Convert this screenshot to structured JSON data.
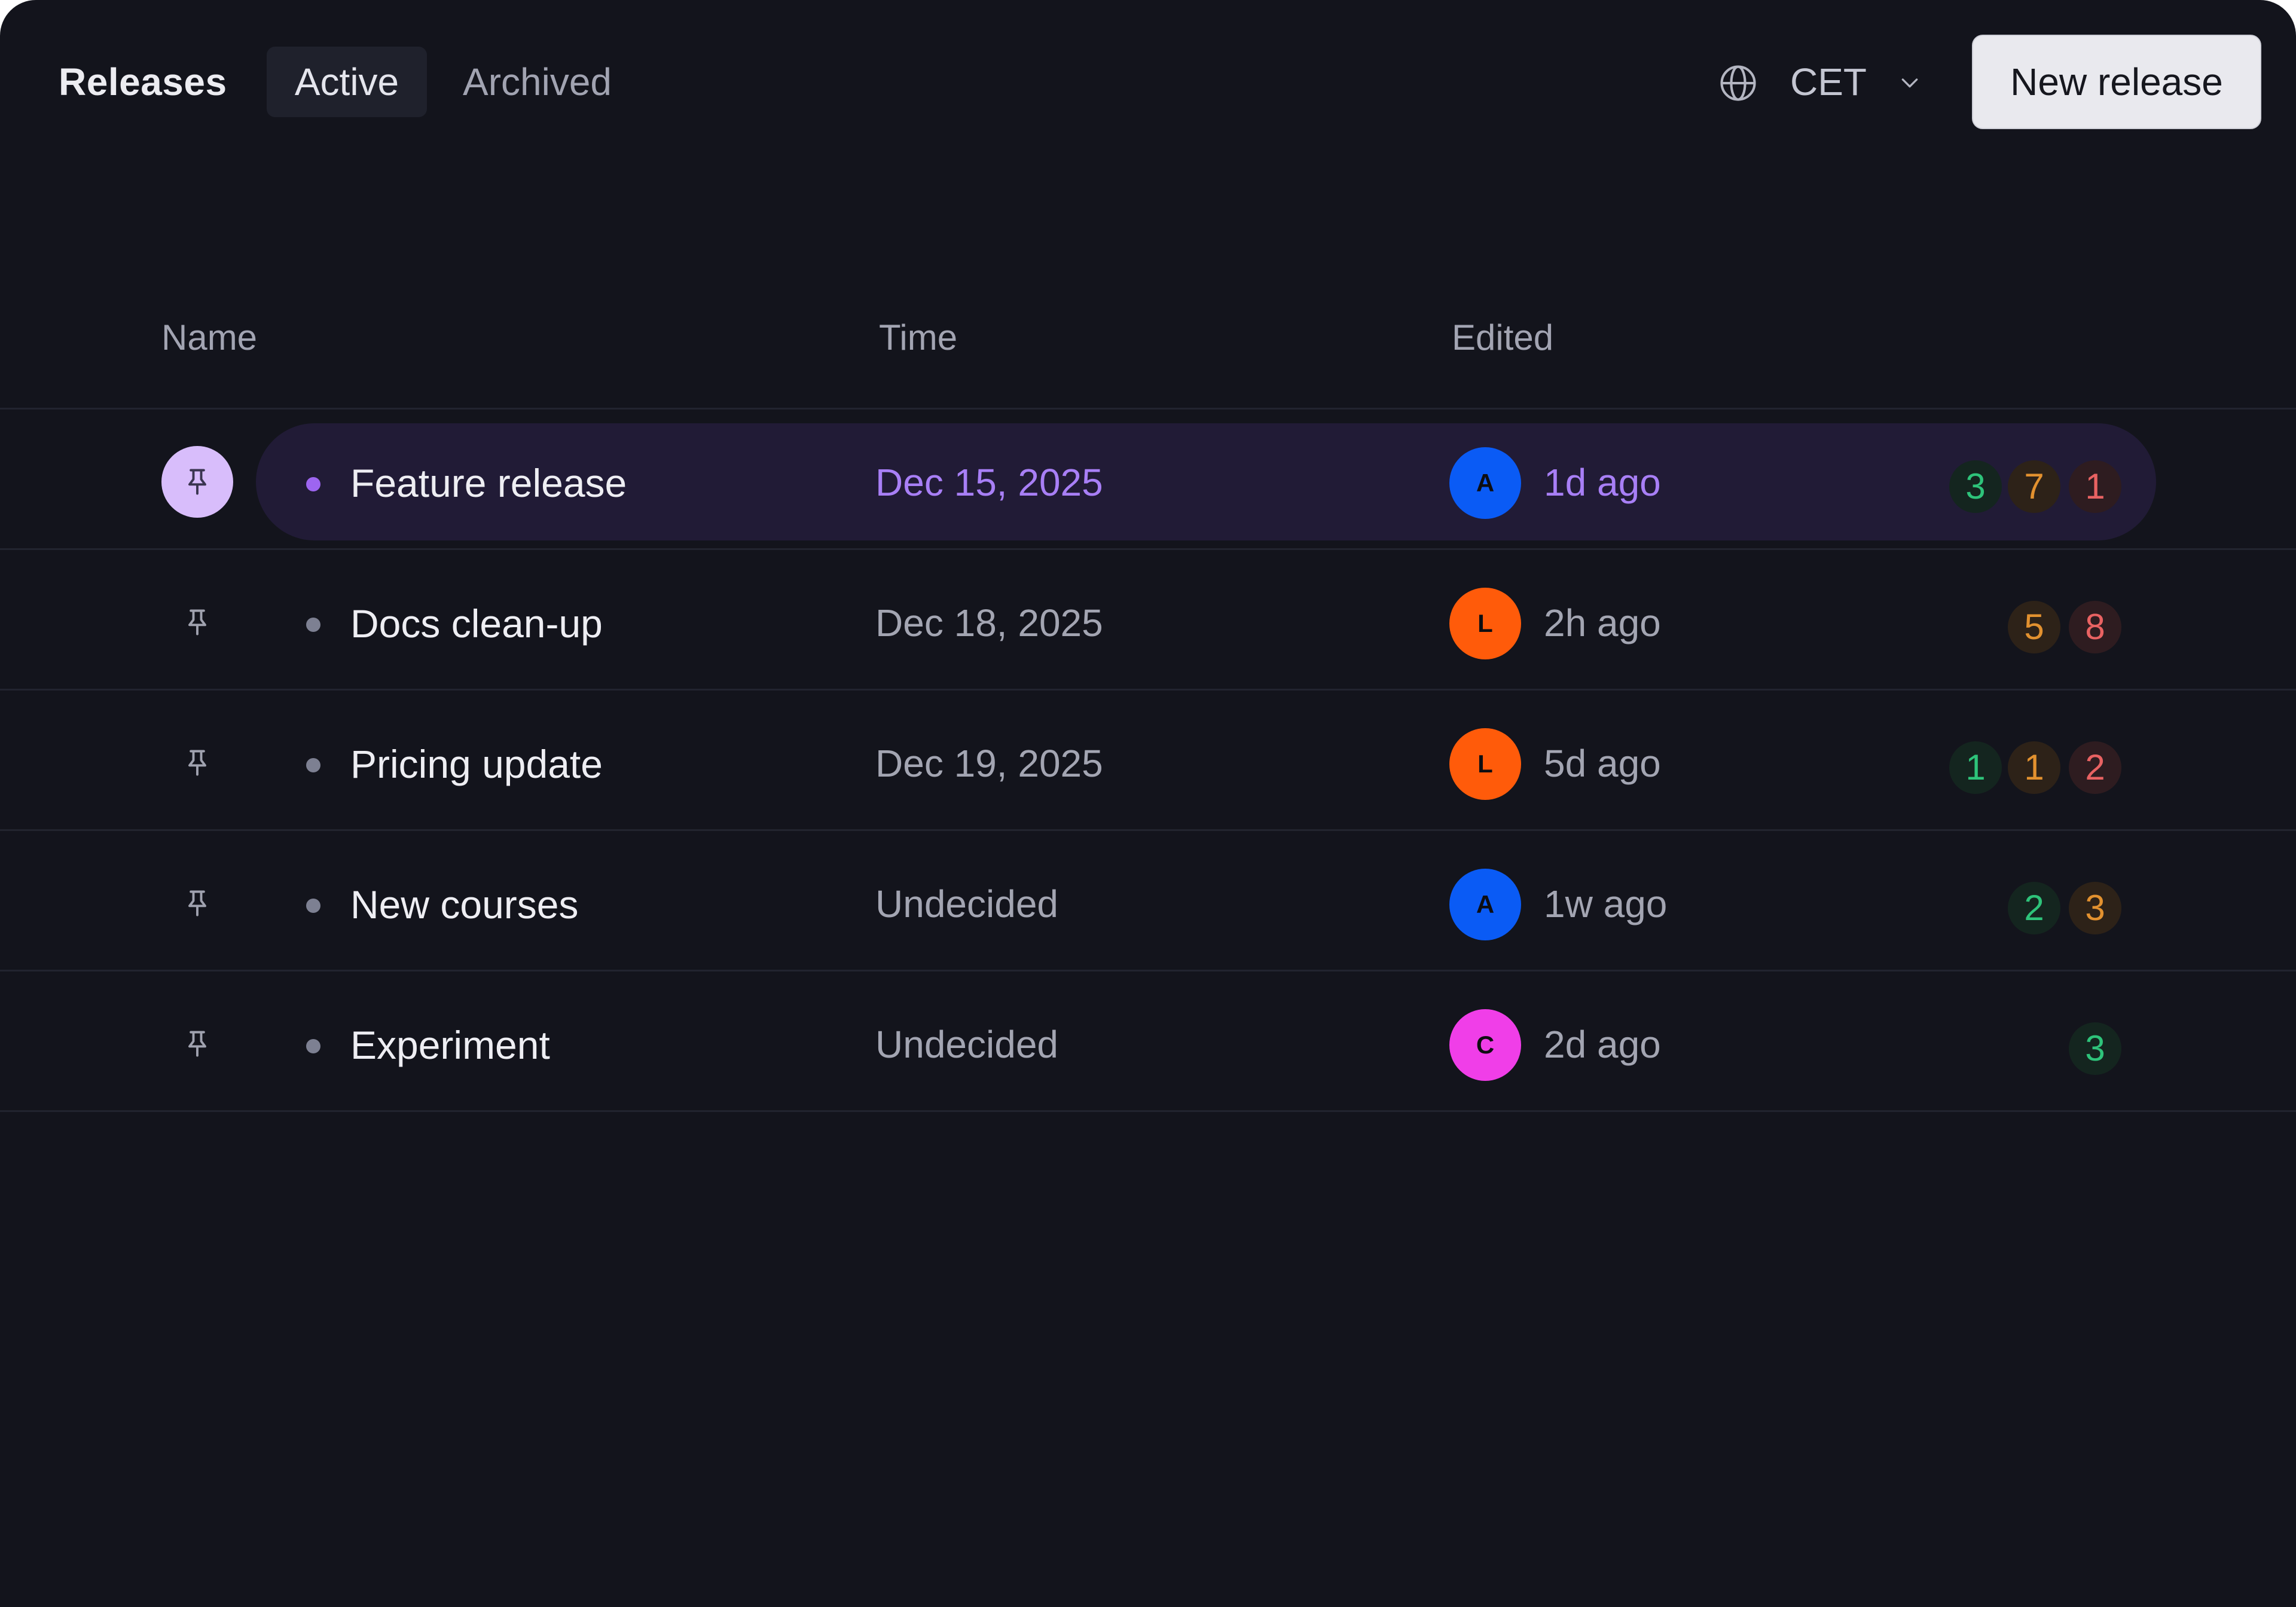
{
  "header": {
    "title": "Releases",
    "tabs": [
      {
        "label": "Active",
        "selected": true
      },
      {
        "label": "Archived",
        "selected": false
      }
    ],
    "timezone": {
      "label": "CET",
      "icon": "globe-icon"
    },
    "new_button": "New release"
  },
  "table": {
    "columns": [
      "Name",
      "Time",
      "Edited"
    ],
    "rows": [
      {
        "name": "Feature release",
        "time": "Dec 15, 2025",
        "avatar": "A",
        "avatar_color": "#0a5bf5",
        "edited": "1d ago",
        "pinned": true,
        "badges": [
          {
            "value": "3",
            "kind": "green"
          },
          {
            "value": "7",
            "kind": "orange"
          },
          {
            "value": "1",
            "kind": "red"
          }
        ]
      },
      {
        "name": "Docs clean-up",
        "time": "Dec 18, 2025",
        "avatar": "L",
        "avatar_color": "#ff5b0a",
        "edited": "2h ago",
        "pinned": false,
        "badges": [
          {
            "value": "5",
            "kind": "orange"
          },
          {
            "value": "8",
            "kind": "red"
          }
        ]
      },
      {
        "name": "Pricing update",
        "time": "Dec 19, 2025",
        "avatar": "L",
        "avatar_color": "#ff5b0a",
        "edited": "5d ago",
        "pinned": false,
        "badges": [
          {
            "value": "1",
            "kind": "green"
          },
          {
            "value": "1",
            "kind": "orange"
          },
          {
            "value": "2",
            "kind": "red"
          }
        ]
      },
      {
        "name": "New courses",
        "time": "Undecided",
        "avatar": "A",
        "avatar_color": "#0a5bf5",
        "edited": "1w ago",
        "pinned": false,
        "badges": [
          {
            "value": "2",
            "kind": "green"
          },
          {
            "value": "3",
            "kind": "orange"
          }
        ]
      },
      {
        "name": "Experiment",
        "time": "Undecided",
        "avatar": "C",
        "avatar_color": "#f03ee8",
        "edited": "2d ago",
        "pinned": false,
        "badges": [
          {
            "value": "3",
            "kind": "green"
          }
        ]
      }
    ]
  },
  "colors": {
    "background": "#13141c",
    "accent_purple": "#a87ff6",
    "badge_green": "#2ec37a",
    "badge_orange": "#e2912f",
    "badge_red": "#e86262"
  }
}
